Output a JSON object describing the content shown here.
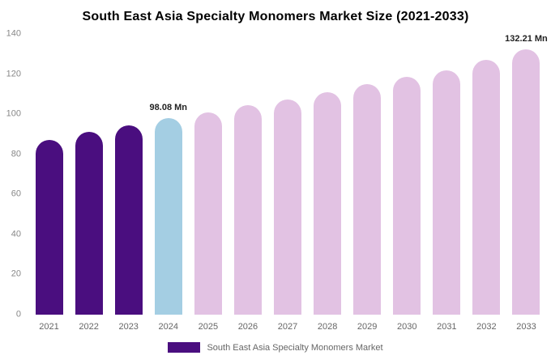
{
  "title": "South East Asia Specialty Monomers Market Size (2021-2033)",
  "legend": {
    "label": "South East Asia Specialty Monomers Market",
    "swatch_color": "#4a0e7f"
  },
  "chart_data": {
    "type": "bar",
    "title": "South East Asia Specialty Monomers Market Size (2021-2033)",
    "categories": [
      "2021",
      "2022",
      "2023",
      "2024",
      "2025",
      "2026",
      "2027",
      "2028",
      "2029",
      "2030",
      "2031",
      "2032",
      "2033"
    ],
    "values": [
      87,
      91,
      94.5,
      98.08,
      101,
      104.5,
      107.5,
      111,
      115,
      118.5,
      122,
      127,
      132.21
    ],
    "roles": [
      "historical",
      "historical",
      "historical",
      "current",
      "forecast",
      "forecast",
      "forecast",
      "forecast",
      "forecast",
      "forecast",
      "forecast",
      "forecast",
      "forecast"
    ],
    "colors": {
      "historical": "#4a0e7f",
      "current": "#a4cee3",
      "forecast": "#e2c2e3"
    },
    "annotations": [
      {
        "category": "2024",
        "text": "98.08 Mn"
      },
      {
        "category": "2033",
        "text": "132.21 Mn"
      }
    ],
    "xlabel": "",
    "ylabel": "",
    "unit": "Mn",
    "ylim": [
      0,
      140
    ],
    "yticks": [
      0,
      20,
      40,
      60,
      80,
      100,
      120,
      140
    ],
    "grid": false,
    "legend_position": "bottom"
  }
}
